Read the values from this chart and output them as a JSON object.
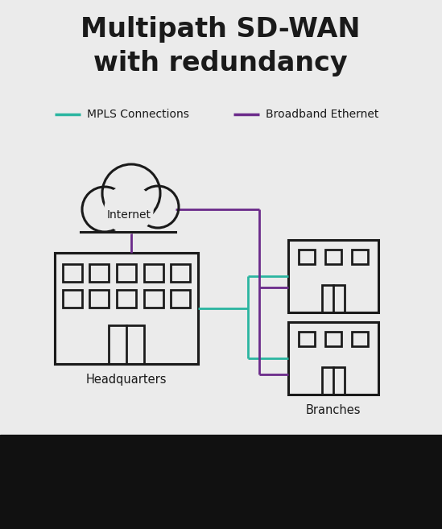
{
  "title_line1": "Multipath SD-WAN",
  "title_line2": "with redundancy",
  "title_fontsize": 24,
  "title_fontweight": "bold",
  "bg_color": "#ebebeb",
  "bg_black": "#111111",
  "mpls_color": "#2ab5a0",
  "broadband_color": "#6b2a8a",
  "line_color": "#1a1a1a",
  "text_color": "#1a1a1a",
  "legend_mpls_label": "MPLS Connections",
  "legend_broadband_label": "Broadband Ethernet",
  "hq_label": "Headquarters",
  "branch_label": "Branches",
  "internet_label": "Internet",
  "lw_building": 2.2,
  "lw_conn": 2.0
}
